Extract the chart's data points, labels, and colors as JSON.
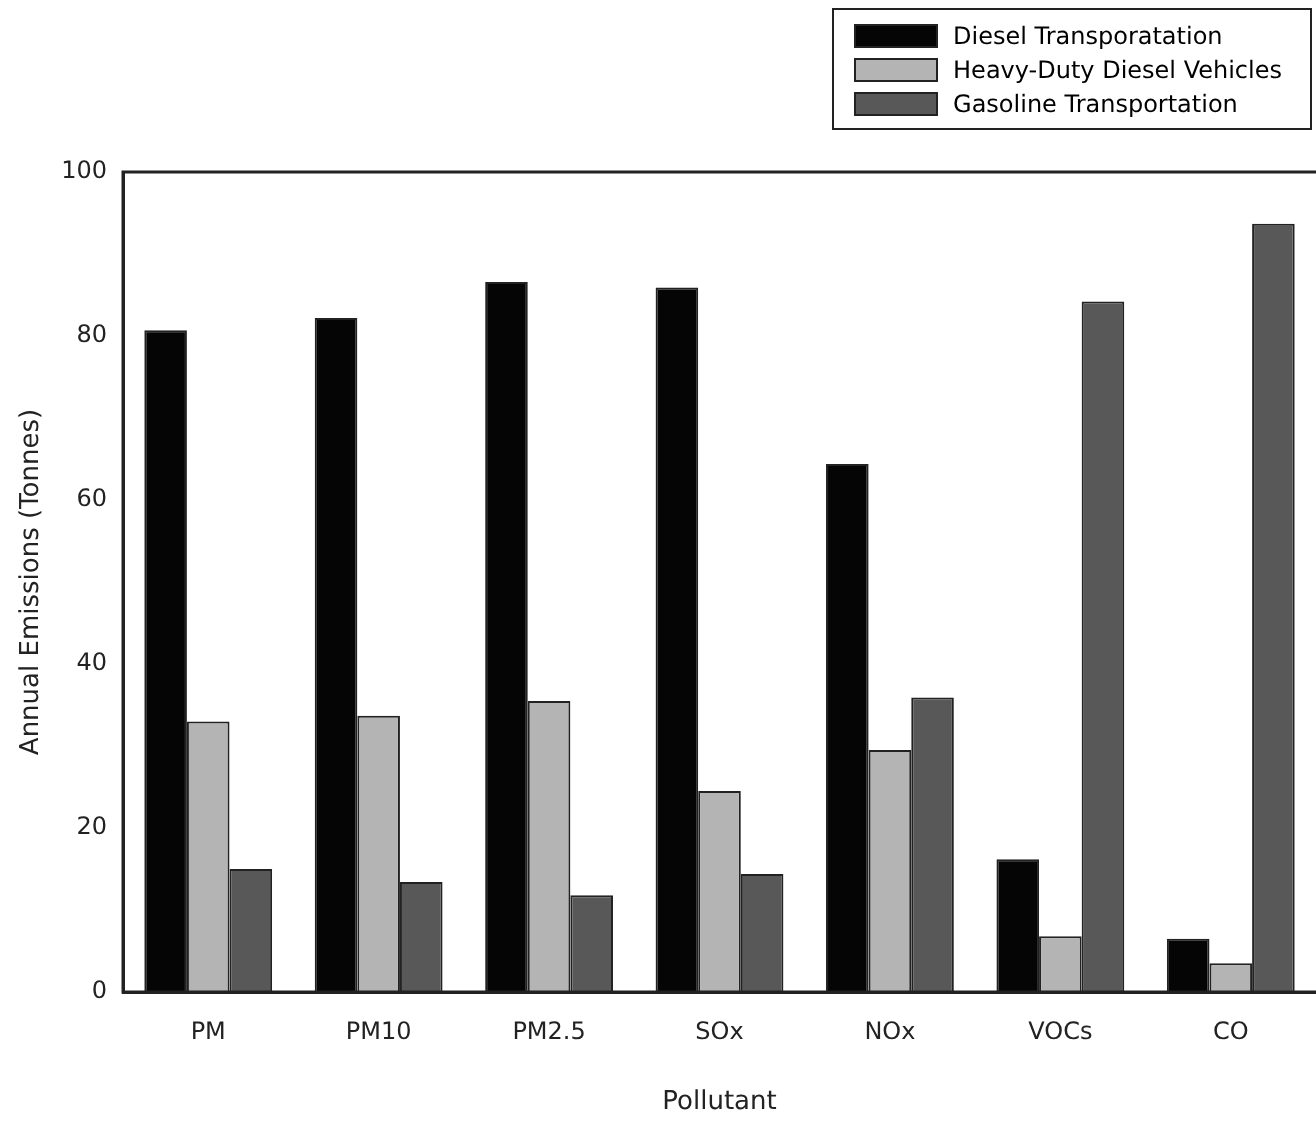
{
  "chart_data": {
    "type": "bar",
    "xlabel": "Pollutant",
    "ylabel": "Annual Emissions (Tonnes)",
    "categories": [
      "PM",
      "PM10",
      "PM2.5",
      "SOx",
      "NOx",
      "VOCs",
      "CO"
    ],
    "series": [
      {
        "name": "Diesel Transporatation",
        "color": "#050505",
        "values": [
          80.7,
          82.2,
          86.6,
          85.9,
          64.4,
          16.2,
          6.5
        ]
      },
      {
        "name": "Heavy-Duty Diesel Vehicles",
        "color": "#b4b4b4",
        "values": [
          33.0,
          33.7,
          35.5,
          24.5,
          29.5,
          6.8,
          3.5
        ]
      },
      {
        "name": "Gasoline Transportation",
        "color": "#585858",
        "values": [
          15.0,
          13.4,
          11.8,
          14.4,
          35.9,
          84.2,
          93.7
        ]
      }
    ],
    "ylim": [
      0,
      100
    ],
    "yticks": [
      0,
      20,
      40,
      60,
      80,
      100
    ],
    "grid": false,
    "legend": "top right"
  }
}
